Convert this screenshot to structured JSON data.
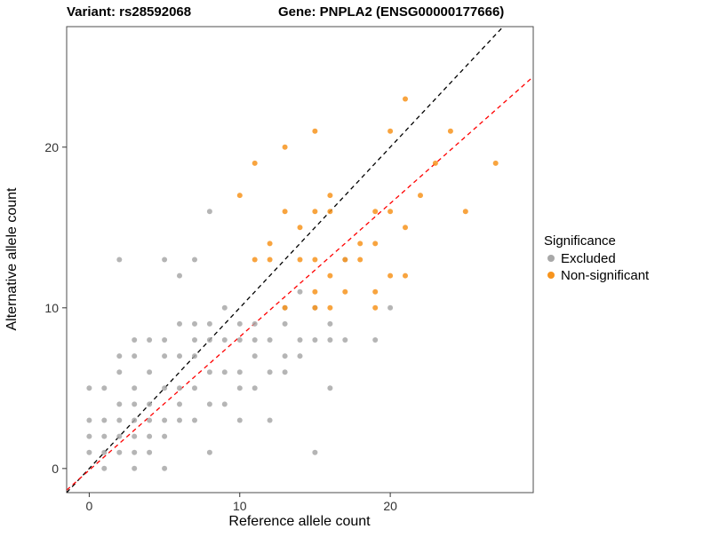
{
  "titles": {
    "variant": "Variant: rs28592068",
    "gene": "Gene: PNPLA2 (ENSG00000177666)"
  },
  "axes": {
    "x_label": "Reference allele count",
    "y_label": "Alternative allele count",
    "x_ticks": [
      0,
      10,
      20
    ],
    "y_ticks": [
      0,
      10,
      20
    ]
  },
  "legend": {
    "title": "Significance",
    "items": [
      {
        "label": "Excluded",
        "color": "#a8a8a8"
      },
      {
        "label": "Non-significant",
        "color": "#f7941d"
      }
    ]
  },
  "chart_data": {
    "type": "scatter",
    "title": "Variant: rs28592068 — Gene: PNPLA2 (ENSG00000177666)",
    "xlabel": "Reference allele count",
    "ylabel": "Alternative allele count",
    "xlim": [
      -1.5,
      29.5
    ],
    "ylim": [
      -1.5,
      27.5
    ],
    "grid": false,
    "legend_position": "right",
    "series": [
      {
        "name": "Excluded",
        "color": "#a8a8a8",
        "points": [
          [
            0,
            1
          ],
          [
            0,
            2
          ],
          [
            0,
            3
          ],
          [
            0,
            5
          ],
          [
            1,
            0
          ],
          [
            1,
            1
          ],
          [
            1,
            2
          ],
          [
            1,
            3
          ],
          [
            1,
            5
          ],
          [
            2,
            1
          ],
          [
            2,
            2
          ],
          [
            2,
            3
          ],
          [
            2,
            4
          ],
          [
            2,
            6
          ],
          [
            2,
            7
          ],
          [
            2,
            13
          ],
          [
            3,
            0
          ],
          [
            3,
            1
          ],
          [
            3,
            2
          ],
          [
            3,
            3
          ],
          [
            3,
            4
          ],
          [
            3,
            5
          ],
          [
            3,
            7
          ],
          [
            3,
            8
          ],
          [
            4,
            1
          ],
          [
            4,
            2
          ],
          [
            4,
            3
          ],
          [
            4,
            4
          ],
          [
            4,
            6
          ],
          [
            4,
            8
          ],
          [
            5,
            0
          ],
          [
            5,
            2
          ],
          [
            5,
            3
          ],
          [
            5,
            5
          ],
          [
            5,
            7
          ],
          [
            5,
            8
          ],
          [
            5,
            13
          ],
          [
            6,
            3
          ],
          [
            6,
            4
          ],
          [
            6,
            5
          ],
          [
            6,
            7
          ],
          [
            6,
            9
          ],
          [
            6,
            12
          ],
          [
            7,
            3
          ],
          [
            7,
            5
          ],
          [
            7,
            7
          ],
          [
            7,
            8
          ],
          [
            7,
            9
          ],
          [
            7,
            13
          ],
          [
            8,
            1
          ],
          [
            8,
            4
          ],
          [
            8,
            6
          ],
          [
            8,
            8
          ],
          [
            8,
            9
          ],
          [
            8,
            16
          ],
          [
            9,
            4
          ],
          [
            9,
            6
          ],
          [
            9,
            8
          ],
          [
            9,
            10
          ],
          [
            10,
            3
          ],
          [
            10,
            5
          ],
          [
            10,
            6
          ],
          [
            10,
            8
          ],
          [
            10,
            9
          ],
          [
            11,
            5
          ],
          [
            11,
            7
          ],
          [
            11,
            8
          ],
          [
            11,
            9
          ],
          [
            12,
            3
          ],
          [
            12,
            6
          ],
          [
            12,
            8
          ],
          [
            13,
            6
          ],
          [
            13,
            7
          ],
          [
            13,
            9
          ],
          [
            13,
            10
          ],
          [
            14,
            7
          ],
          [
            14,
            8
          ],
          [
            14,
            11
          ],
          [
            15,
            1
          ],
          [
            15,
            8
          ],
          [
            15,
            10
          ],
          [
            16,
            5
          ],
          [
            16,
            8
          ],
          [
            16,
            9
          ],
          [
            17,
            8
          ],
          [
            17,
            13
          ],
          [
            19,
            8
          ],
          [
            20,
            10
          ]
        ]
      },
      {
        "name": "Non-significant",
        "color": "#f7941d",
        "points": [
          [
            10,
            17
          ],
          [
            11,
            13
          ],
          [
            11,
            19
          ],
          [
            12,
            13
          ],
          [
            12,
            14
          ],
          [
            13,
            10
          ],
          [
            13,
            16
          ],
          [
            13,
            20
          ],
          [
            14,
            13
          ],
          [
            14,
            15
          ],
          [
            15,
            10
          ],
          [
            15,
            11
          ],
          [
            15,
            13
          ],
          [
            15,
            16
          ],
          [
            15,
            21
          ],
          [
            16,
            10
          ],
          [
            16,
            12
          ],
          [
            16,
            16
          ],
          [
            16,
            17
          ],
          [
            17,
            11
          ],
          [
            17,
            13
          ],
          [
            18,
            13
          ],
          [
            18,
            14
          ],
          [
            19,
            10
          ],
          [
            19,
            11
          ],
          [
            19,
            14
          ],
          [
            19,
            16
          ],
          [
            20,
            12
          ],
          [
            20,
            16
          ],
          [
            20,
            21
          ],
          [
            21,
            12
          ],
          [
            21,
            15
          ],
          [
            21,
            23
          ],
          [
            22,
            17
          ],
          [
            23,
            19
          ],
          [
            24,
            21
          ],
          [
            25,
            16
          ],
          [
            27,
            19
          ]
        ]
      }
    ],
    "lines": [
      {
        "name": "identity-line",
        "color": "#000000",
        "dashed": true,
        "slope": 1.0,
        "intercept": 0
      },
      {
        "name": "fit-line",
        "color": "#ff0000",
        "dashed": true,
        "slope": 0.83,
        "intercept": -0.1
      }
    ]
  }
}
